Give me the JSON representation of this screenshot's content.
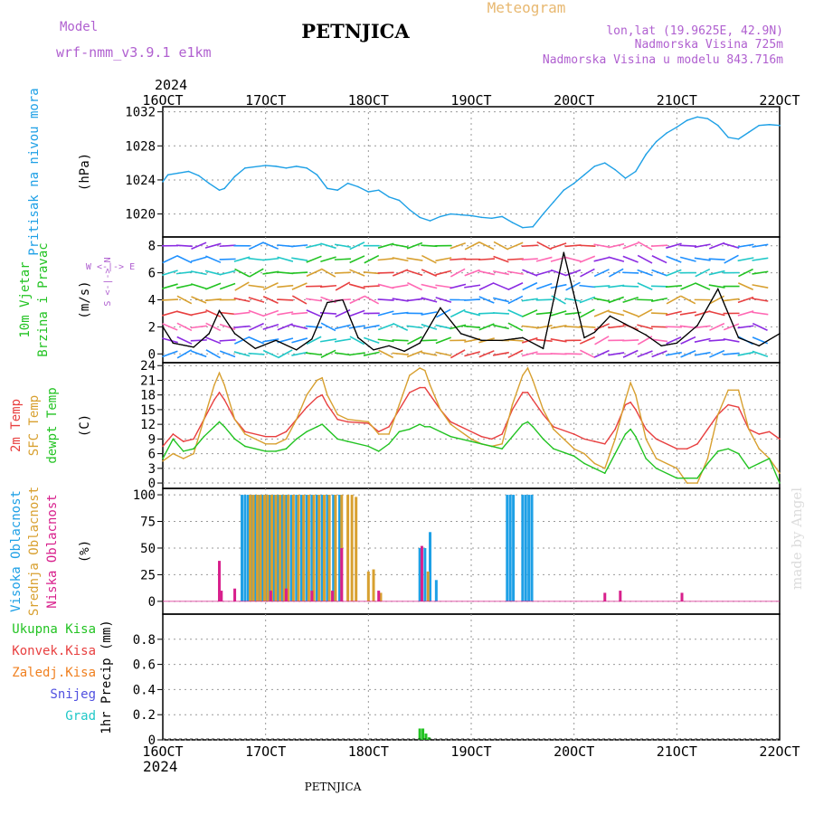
{
  "header": {
    "title": "PETNJICA",
    "app_title": "Meteogram",
    "model_label": "Model",
    "model_name": "wrf-nmm_v3.9.1  e1km",
    "coords": "lon,lat (19.9625E, 42.9N)",
    "elevation": "Nadmorska Visina 725m",
    "model_elevation": "Nadmorska Visina u modelu 843.716m",
    "year": "2024"
  },
  "footer": {
    "station": "PETNJICA",
    "year": "2024",
    "credit": "made by Angel"
  },
  "colors": {
    "pressure": "#1ea0e6",
    "temp2m": "#e84040",
    "sfc": "#d8a030",
    "dewpt": "#22c322",
    "visoka": "#1ea0e6",
    "srednja": "#d8a030",
    "niska": "#d8208c",
    "ukupna": "#22c322",
    "konvek": "#e84040",
    "zaledj": "#f08020",
    "snijeg": "#5050e0",
    "grad": "#20c8c8",
    "wind_label": "#22c322",
    "wind_axis": "#b060d0"
  },
  "chart_data": [
    {
      "type": "line",
      "name": "pressure",
      "ylabel": "(hPa)",
      "side_labels": [
        "Pritisak na nivou mora"
      ],
      "xlim": [
        "2024-10-16",
        "2024-10-22"
      ],
      "x_ticks": [
        "16OCT",
        "17OCT",
        "18OCT",
        "19OCT",
        "20OCT",
        "21OCT",
        "22OCT"
      ],
      "ylim": [
        1017,
        1032
      ],
      "y_ticks": [
        1020,
        1024,
        1028,
        1032
      ],
      "series": [
        {
          "name": "Pritisak na nivou mora",
          "color": "#1ea0e6",
          "x": [
            0,
            0.05,
            0.15,
            0.25,
            0.35,
            0.45,
            0.55,
            0.6,
            0.7,
            0.8,
            1.0,
            1.1,
            1.2,
            1.3,
            1.4,
            1.5,
            1.6,
            1.7,
            1.8,
            1.9,
            2.0,
            2.1,
            2.2,
            2.3,
            2.4,
            2.5,
            2.6,
            2.7,
            2.8,
            2.9,
            3.0,
            3.1,
            3.2,
            3.3,
            3.4,
            3.5,
            3.6,
            3.7,
            3.8,
            3.9,
            4.0,
            4.1,
            4.2,
            4.3,
            4.4,
            4.5,
            4.6,
            4.7,
            4.8,
            4.9,
            5.0,
            5.1,
            5.2,
            5.3,
            5.4,
            5.5,
            5.6,
            5.7,
            5.8,
            5.9,
            6.0
          ],
          "y": [
            1023.8,
            1024.6,
            1024.8,
            1025.0,
            1024.5,
            1023.6,
            1022.8,
            1023.0,
            1024.4,
            1025.4,
            1025.7,
            1025.6,
            1025.4,
            1025.6,
            1025.4,
            1024.6,
            1023.0,
            1022.8,
            1023.6,
            1023.2,
            1022.6,
            1022.8,
            1022.0,
            1021.6,
            1020.5,
            1019.6,
            1019.2,
            1019.7,
            1020.0,
            1019.9,
            1019.8,
            1019.6,
            1019.5,
            1019.7,
            1019.0,
            1018.4,
            1018.5,
            1020.0,
            1021.4,
            1022.8,
            1023.6,
            1024.6,
            1025.6,
            1026.0,
            1025.2,
            1024.2,
            1025.0,
            1027.0,
            1028.5,
            1029.5,
            1030.2,
            1031.0,
            1031.4,
            1031.2,
            1030.4,
            1029.0,
            1028.8,
            1029.6,
            1030.4,
            1030.5,
            1030.4
          ]
        }
      ]
    },
    {
      "type": "line",
      "name": "wind",
      "ylabel": "(m/s)",
      "side_labels": [
        "10m Vjetar",
        "Brzina i Pravac"
      ],
      "axis_labels": [
        "W <-|-> E",
        "S <-|-> N"
      ],
      "ylim": [
        -0.5,
        8.6
      ],
      "y_ticks": [
        0,
        2,
        4,
        6,
        8
      ],
      "series": [
        {
          "name": "Brzina",
          "color": "#000000",
          "x": [
            0,
            0.1,
            0.3,
            0.45,
            0.55,
            0.7,
            0.9,
            1.1,
            1.3,
            1.45,
            1.6,
            1.75,
            1.9,
            2.05,
            2.2,
            2.35,
            2.5,
            2.7,
            2.9,
            3.1,
            3.3,
            3.5,
            3.7,
            3.9,
            4.1,
            4.2,
            4.35,
            4.5,
            4.7,
            4.85,
            5.0,
            5.2,
            5.4,
            5.6,
            5.8,
            6.0
          ],
          "y": [
            2.0,
            0.8,
            0.5,
            1.5,
            3.2,
            1.5,
            0.4,
            1.0,
            0.3,
            1.1,
            3.8,
            4.0,
            1.2,
            0.3,
            0.6,
            0.2,
            0.8,
            3.4,
            1.5,
            1.0,
            1.0,
            1.2,
            0.4,
            7.5,
            1.2,
            1.6,
            2.8,
            2.2,
            1.4,
            0.6,
            0.8,
            2.1,
            4.8,
            1.2,
            0.6,
            1.5
          ]
        }
      ]
    },
    {
      "type": "line",
      "name": "temperature",
      "ylabel": "(C)",
      "side_labels": [
        "2m Temp",
        "SFC Temp",
        "dewpt Temp"
      ],
      "ylim": [
        -1,
        24
      ],
      "y_ticks": [
        0,
        3,
        6,
        9,
        12,
        15,
        18,
        21,
        24
      ],
      "series": [
        {
          "name": "2m Temp",
          "color": "#e84040",
          "x": [
            0,
            0.1,
            0.2,
            0.3,
            0.4,
            0.5,
            0.55,
            0.6,
            0.7,
            0.8,
            1.0,
            1.1,
            1.2,
            1.3,
            1.4,
            1.5,
            1.55,
            1.6,
            1.7,
            1.8,
            2.0,
            2.1,
            2.2,
            2.3,
            2.4,
            2.5,
            2.55,
            2.6,
            2.7,
            2.8,
            3.0,
            3.1,
            3.2,
            3.3,
            3.4,
            3.5,
            3.55,
            3.6,
            3.7,
            3.8,
            4.0,
            4.1,
            4.2,
            4.3,
            4.4,
            4.5,
            4.55,
            4.6,
            4.7,
            4.8,
            5.0,
            5.1,
            5.2,
            5.3,
            5.4,
            5.5,
            5.6,
            5.7,
            5.8,
            5.9,
            6.0
          ],
          "y": [
            7.5,
            10,
            8.5,
            9,
            13,
            17,
            18.5,
            17,
            13,
            10.5,
            9.5,
            9.5,
            10.5,
            13,
            15.5,
            17.5,
            18,
            16,
            13,
            12.5,
            12.2,
            10.5,
            11.5,
            15,
            18.5,
            19.5,
            19.5,
            18,
            15,
            12.5,
            10.5,
            9.5,
            9,
            10,
            15,
            18.5,
            18.5,
            17,
            14,
            11.5,
            10,
            9,
            8.5,
            8,
            11,
            16,
            16.5,
            15,
            11,
            9,
            7,
            7,
            8,
            11,
            14,
            16,
            15.5,
            11,
            10,
            10.5,
            9
          ]
        },
        {
          "name": "SFC Temp",
          "color": "#d8a030",
          "x": [
            0,
            0.1,
            0.2,
            0.3,
            0.4,
            0.5,
            0.55,
            0.6,
            0.7,
            0.8,
            1.0,
            1.1,
            1.2,
            1.3,
            1.4,
            1.5,
            1.55,
            1.6,
            1.7,
            1.8,
            2.0,
            2.1,
            2.2,
            2.3,
            2.4,
            2.5,
            2.55,
            2.6,
            2.7,
            2.8,
            3.0,
            3.1,
            3.2,
            3.3,
            3.4,
            3.5,
            3.55,
            3.6,
            3.7,
            3.8,
            4.0,
            4.1,
            4.2,
            4.3,
            4.4,
            4.5,
            4.55,
            4.6,
            4.7,
            4.8,
            5.0,
            5.1,
            5.2,
            5.3,
            5.4,
            5.5,
            5.6,
            5.7,
            5.8,
            5.9,
            6.0
          ],
          "y": [
            4.5,
            6,
            5,
            6,
            13,
            20,
            22.5,
            20,
            13,
            10,
            8,
            8,
            9,
            13,
            18,
            21,
            21.5,
            18,
            14,
            13,
            12.5,
            10,
            10,
            16,
            22,
            23.5,
            23,
            20,
            15,
            12,
            9,
            8,
            7.5,
            8,
            16,
            22,
            23.5,
            21,
            15,
            11,
            7,
            6,
            4,
            3,
            9,
            17,
            20.5,
            18,
            9,
            5,
            3,
            0,
            0,
            5,
            14,
            19,
            19,
            11,
            7,
            5,
            2
          ]
        },
        {
          "name": "dewpt Temp",
          "color": "#22c322",
          "x": [
            0,
            0.1,
            0.2,
            0.3,
            0.4,
            0.5,
            0.55,
            0.6,
            0.7,
            0.8,
            1.0,
            1.1,
            1.2,
            1.3,
            1.4,
            1.5,
            1.55,
            1.6,
            1.7,
            1.8,
            2.0,
            2.1,
            2.2,
            2.3,
            2.4,
            2.5,
            2.55,
            2.6,
            2.7,
            2.8,
            3.0,
            3.1,
            3.2,
            3.3,
            3.4,
            3.5,
            3.55,
            3.6,
            3.7,
            3.8,
            4.0,
            4.1,
            4.2,
            4.3,
            4.4,
            4.5,
            4.55,
            4.6,
            4.7,
            4.8,
            5.0,
            5.1,
            5.2,
            5.3,
            5.4,
            5.5,
            5.6,
            5.7,
            5.8,
            5.9,
            6.0
          ],
          "y": [
            5,
            9,
            6.5,
            7,
            9.5,
            11.5,
            12.5,
            11.5,
            9,
            7.5,
            6.5,
            6.5,
            7,
            9,
            10.5,
            11.5,
            12,
            11,
            9,
            8.5,
            7.5,
            6.5,
            8,
            10.5,
            11,
            12,
            11.5,
            11.5,
            10.5,
            9.5,
            8.5,
            8,
            7.5,
            7,
            9.5,
            12,
            12.5,
            11.5,
            9,
            7,
            5.5,
            4,
            3,
            2,
            6,
            10,
            11,
            9.5,
            5,
            3,
            1,
            1,
            1,
            4,
            6.5,
            7,
            6,
            3,
            4,
            5,
            0
          ]
        }
      ]
    },
    {
      "type": "bar",
      "name": "clouds",
      "ylabel": "(%)",
      "side_labels": [
        "Visoka Oblacnost",
        "Srednja Oblacnost",
        "Niska Oblacnost"
      ],
      "ylim": [
        0,
        100
      ],
      "y_ticks": [
        0,
        25,
        50,
        75,
        100
      ],
      "series": [
        {
          "name": "Visoka Oblacnost",
          "color": "#1ea0e6",
          "x": [
            0.77,
            0.8,
            0.83,
            0.86,
            0.9,
            0.93,
            0.97,
            1.0,
            1.04,
            1.08,
            1.12,
            1.16,
            1.2,
            1.25,
            1.3,
            1.35,
            1.4,
            1.45,
            1.5,
            1.55,
            1.6,
            1.66,
            1.72,
            2.5,
            2.55,
            2.6,
            2.66,
            3.35,
            3.38,
            3.41,
            3.5,
            3.53,
            3.56,
            3.59
          ],
          "y": [
            100,
            100,
            100,
            100,
            100,
            100,
            100,
            100,
            100,
            100,
            100,
            100,
            100,
            100,
            100,
            100,
            100,
            100,
            100,
            100,
            100,
            100,
            100,
            50,
            50,
            65,
            20,
            100,
            100,
            100,
            100,
            100,
            100,
            100
          ]
        },
        {
          "name": "Srednja Oblacnost",
          "color": "#d8a030",
          "x": [
            0.85,
            0.88,
            0.92,
            0.95,
            0.99,
            1.02,
            1.06,
            1.1,
            1.14,
            1.18,
            1.22,
            1.27,
            1.32,
            1.37,
            1.42,
            1.47,
            1.52,
            1.57,
            1.62,
            1.68,
            1.74,
            1.8,
            1.84,
            1.88,
            2.0,
            2.05,
            2.12,
            2.58
          ],
          "y": [
            100,
            100,
            100,
            100,
            100,
            100,
            100,
            100,
            100,
            100,
            100,
            100,
            100,
            100,
            100,
            100,
            100,
            100,
            100,
            100,
            100,
            100,
            100,
            98,
            28,
            30,
            8,
            28
          ]
        },
        {
          "name": "Niska Oblacnost",
          "color": "#d8208c",
          "x": [
            0.55,
            0.57,
            0.7,
            1.05,
            1.2,
            1.45,
            1.65,
            1.74,
            2.1,
            2.52,
            4.3,
            4.45,
            5.05
          ],
          "y": [
            38,
            10,
            12,
            10,
            12,
            10,
            10,
            50,
            10,
            52,
            8,
            10,
            8
          ]
        }
      ]
    },
    {
      "type": "bar",
      "name": "precipitation",
      "ylabel": "1hr Precip (mm)",
      "side_labels": [
        "Ukupna Kisa",
        "Konvek.Kisa",
        "Zaledj.Kisa",
        "Snijeg",
        "Grad"
      ],
      "ylim": [
        0,
        1
      ],
      "y_ticks": [
        0,
        0.2,
        0.4,
        0.6,
        0.8
      ],
      "series": [
        {
          "name": "Ukupna Kisa",
          "color": "#22c322",
          "x": [
            2.5,
            2.53,
            2.56,
            2.59
          ],
          "y": [
            0.09,
            0.09,
            0.05,
            0.02
          ]
        }
      ]
    }
  ]
}
